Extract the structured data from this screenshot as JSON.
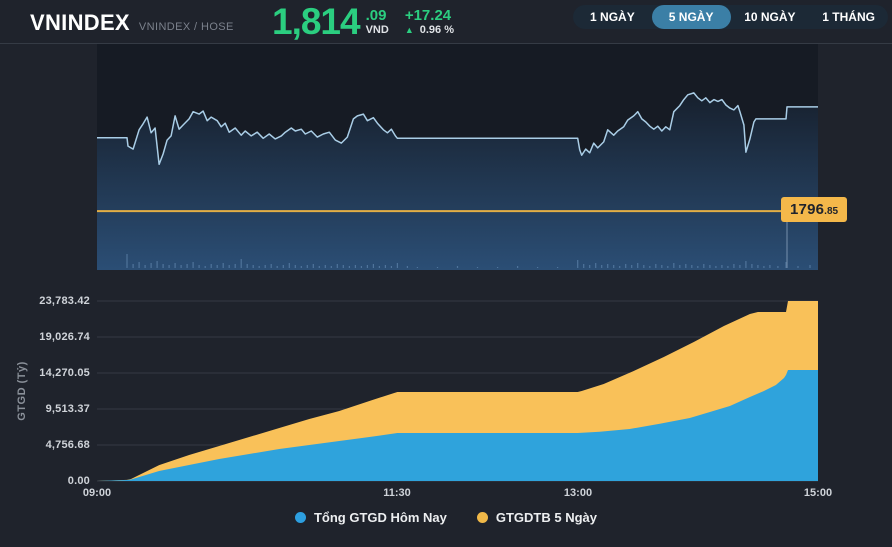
{
  "header": {
    "title": "VNINDEX",
    "subtitle": "VNINDEX / HOSE",
    "price_main": "1,814",
    "price_frac": ".09",
    "currency": "VND",
    "change": "+17.24",
    "up_arrow": "▲",
    "change_pct": "0.96 %"
  },
  "tabs": [
    {
      "label": "1 NGÀY",
      "active": false
    },
    {
      "label": "5 NGÀY",
      "active": true
    },
    {
      "label": "10 NGÀY",
      "active": false
    },
    {
      "label": "1 THÁNG",
      "active": false
    }
  ],
  "colors": {
    "up_green": "#2bce80",
    "price_line": "#a9cde6",
    "reference_yellow": "#e2ae45",
    "label_bg": "#f4b84a",
    "area_blue": "#2fa3dc",
    "area_yellow": "#f9c159",
    "legend_blue": "#2d9fe0",
    "legend_yellow": "#f0b848",
    "plot_bg": "#161b24",
    "page_bg": "#1f232c",
    "grid": "#343a44"
  },
  "chart_data": [
    {
      "type": "line",
      "name": "VNINDEX price (5-day view, intraday axis 09:00-15:00)",
      "x_unit": "minutes from 09:00",
      "x_range": [
        0,
        360
      ],
      "y_range": [
        1787.1,
        1824.5
      ],
      "grid": false,
      "reference_line": {
        "value": 1796.85,
        "label_main": "1796",
        "label_frac": ".85"
      },
      "cursor_minute": 344.5,
      "series": [
        {
          "name": "VNINDEX",
          "points": [
            [
              0,
              1809
            ],
            [
              15,
              1809
            ],
            [
              15.5,
              1807.6
            ],
            [
              18,
              1807.1
            ],
            [
              21,
              1810.3
            ],
            [
              23,
              1811.3
            ],
            [
              25,
              1812.4
            ],
            [
              27,
              1809.8
            ],
            [
              29,
              1810.6
            ],
            [
              31,
              1804.6
            ],
            [
              33,
              1806.3
            ],
            [
              35,
              1808.6
            ],
            [
              37,
              1809.3
            ],
            [
              39,
              1812.6
            ],
            [
              41,
              1810.4
            ],
            [
              43,
              1811.1
            ],
            [
              46,
              1812.1
            ],
            [
              48,
              1813.3
            ],
            [
              51,
              1812.9
            ],
            [
              53,
              1813.4
            ],
            [
              55,
              1811.8
            ],
            [
              57,
              1812.4
            ],
            [
              60,
              1811.8
            ],
            [
              62,
              1810.8
            ],
            [
              64,
              1811.4
            ],
            [
              66,
              1809.9
            ],
            [
              69,
              1810.6
            ],
            [
              72,
              1809.4
            ],
            [
              74,
              1810.1
            ],
            [
              77,
              1809.3
            ],
            [
              80,
              1809.9
            ],
            [
              83,
              1808.9
            ],
            [
              86,
              1809.6
            ],
            [
              89,
              1808.8
            ],
            [
              92,
              1809.3
            ],
            [
              94,
              1809.9
            ],
            [
              97,
              1810.6
            ],
            [
              99,
              1810.1
            ],
            [
              102,
              1810.4
            ],
            [
              104,
              1809.6
            ],
            [
              107,
              1810.1
            ],
            [
              110,
              1809.1
            ],
            [
              113,
              1809.6
            ],
            [
              116,
              1809.9
            ],
            [
              119,
              1808.6
            ],
            [
              122,
              1808.1
            ],
            [
              125,
              1809.1
            ],
            [
              128,
              1812.1
            ],
            [
              130,
              1812.6
            ],
            [
              133,
              1812.9
            ],
            [
              135,
              1811.8
            ],
            [
              138,
              1812.3
            ],
            [
              140,
              1811.4
            ],
            [
              143,
              1810.3
            ],
            [
              145,
              1809.8
            ],
            [
              147,
              1810.4
            ],
            [
              149,
              1809.3
            ],
            [
              150,
              1808.9
            ],
            [
              240,
              1808.9
            ],
            [
              241,
              1807
            ],
            [
              242,
              1806.1
            ],
            [
              244,
              1807.1
            ],
            [
              246,
              1806.5
            ],
            [
              248,
              1808.1
            ],
            [
              250,
              1807.3
            ],
            [
              253,
              1808.3
            ],
            [
              255,
              1810.3
            ],
            [
              258,
              1809.4
            ],
            [
              260,
              1810.1
            ],
            [
              263,
              1810.8
            ],
            [
              265,
              1811.9
            ],
            [
              268,
              1812.6
            ],
            [
              270,
              1813.3
            ],
            [
              272,
              1812.1
            ],
            [
              274,
              1811.6
            ],
            [
              276,
              1810.9
            ],
            [
              278,
              1810.4
            ],
            [
              280,
              1810.9
            ],
            [
              282,
              1810.1
            ],
            [
              284,
              1810.8
            ],
            [
              286,
              1810.3
            ],
            [
              288,
              1813.3
            ],
            [
              291,
              1814.3
            ],
            [
              293,
              1815.3
            ],
            [
              295,
              1816.1
            ],
            [
              298,
              1816.4
            ],
            [
              300,
              1815.6
            ],
            [
              302,
              1815.1
            ],
            [
              304,
              1815.6
            ],
            [
              306,
              1814.8
            ],
            [
              308,
              1815.3
            ],
            [
              310,
              1815
            ],
            [
              312,
              1815.3
            ],
            [
              314,
              1814.4
            ],
            [
              316,
              1813.9
            ],
            [
              318,
              1813.6
            ],
            [
              320,
              1814.3
            ],
            [
              321,
              1813.3
            ],
            [
              323,
              1811.1
            ],
            [
              324,
              1806.6
            ],
            [
              326,
              1808.8
            ],
            [
              328,
              1811.6
            ],
            [
              329,
              1812.1
            ],
            [
              344,
              1812.1
            ],
            [
              344.5,
              1814.09
            ],
            [
              360,
              1814.09
            ]
          ]
        }
      ],
      "volume_bars": [
        [
          15,
          14
        ],
        [
          18,
          4
        ],
        [
          21,
          6
        ],
        [
          24,
          3
        ],
        [
          27,
          5
        ],
        [
          30,
          7
        ],
        [
          33,
          4
        ],
        [
          36,
          3
        ],
        [
          39,
          5
        ],
        [
          42,
          3
        ],
        [
          45,
          4
        ],
        [
          48,
          6
        ],
        [
          51,
          3
        ],
        [
          54,
          2
        ],
        [
          57,
          4
        ],
        [
          60,
          3
        ],
        [
          63,
          5
        ],
        [
          66,
          3
        ],
        [
          69,
          4
        ],
        [
          72,
          9
        ],
        [
          75,
          4
        ],
        [
          78,
          3
        ],
        [
          81,
          2
        ],
        [
          84,
          3
        ],
        [
          87,
          4
        ],
        [
          90,
          2
        ],
        [
          93,
          3
        ],
        [
          96,
          5
        ],
        [
          99,
          3
        ],
        [
          102,
          2
        ],
        [
          105,
          3
        ],
        [
          108,
          4
        ],
        [
          111,
          2
        ],
        [
          114,
          3
        ],
        [
          117,
          2
        ],
        [
          120,
          4
        ],
        [
          123,
          3
        ],
        [
          126,
          2
        ],
        [
          129,
          3
        ],
        [
          132,
          2
        ],
        [
          135,
          3
        ],
        [
          138,
          4
        ],
        [
          141,
          2
        ],
        [
          144,
          3
        ],
        [
          147,
          2
        ],
        [
          150,
          5
        ],
        [
          155,
          2
        ],
        [
          160,
          1
        ],
        [
          170,
          1
        ],
        [
          180,
          2
        ],
        [
          190,
          1
        ],
        [
          200,
          1
        ],
        [
          210,
          2
        ],
        [
          220,
          1
        ],
        [
          230,
          1
        ],
        [
          240,
          8
        ],
        [
          243,
          4
        ],
        [
          246,
          3
        ],
        [
          249,
          5
        ],
        [
          252,
          3
        ],
        [
          255,
          4
        ],
        [
          258,
          3
        ],
        [
          261,
          2
        ],
        [
          264,
          4
        ],
        [
          267,
          3
        ],
        [
          270,
          5
        ],
        [
          273,
          3
        ],
        [
          276,
          2
        ],
        [
          279,
          4
        ],
        [
          282,
          3
        ],
        [
          285,
          2
        ],
        [
          288,
          5
        ],
        [
          291,
          3
        ],
        [
          294,
          4
        ],
        [
          297,
          3
        ],
        [
          300,
          2
        ],
        [
          303,
          4
        ],
        [
          306,
          3
        ],
        [
          309,
          2
        ],
        [
          312,
          3
        ],
        [
          315,
          2
        ],
        [
          318,
          4
        ],
        [
          321,
          3
        ],
        [
          324,
          7
        ],
        [
          327,
          4
        ],
        [
          330,
          3
        ],
        [
          333,
          2
        ],
        [
          336,
          3
        ],
        [
          340,
          2
        ],
        [
          344,
          6
        ],
        [
          350,
          2
        ],
        [
          356,
          3
        ]
      ]
    },
    {
      "type": "area",
      "name": "Cumulative trading value (GTGD)",
      "x_unit": "minutes from 09:00",
      "x_range": [
        0,
        360
      ],
      "ylim": [
        0,
        23783.42
      ],
      "grid": true,
      "ylabel": "GTGD (Tỷ)",
      "x_ticks": [
        {
          "pos": 0,
          "label": "09:00"
        },
        {
          "pos": 150,
          "label": "11:30"
        },
        {
          "pos": 240,
          "label": "13:00"
        },
        {
          "pos": 360,
          "label": "15:00"
        }
      ],
      "y_ticks": [
        {
          "value": 0,
          "label": "0.00"
        },
        {
          "value": 4756.68,
          "label": "4,756.68"
        },
        {
          "value": 9513.37,
          "label": "9,513.37"
        },
        {
          "value": 14270.05,
          "label": "14,270.05"
        },
        {
          "value": 19026.74,
          "label": "19,026.74"
        },
        {
          "value": 23783.42,
          "label": "23,783.42"
        }
      ],
      "series": [
        {
          "name": "GTGDTB 5 Ngày",
          "color": "#f9c159",
          "points": [
            [
              0,
              0
            ],
            [
              15,
              150
            ],
            [
              17,
              260
            ],
            [
              31,
              2100
            ],
            [
              46,
              3440
            ],
            [
              61,
              4620
            ],
            [
              76,
              5810
            ],
            [
              91,
              7000
            ],
            [
              106,
              8190
            ],
            [
              121,
              9250
            ],
            [
              136,
              10570
            ],
            [
              148,
              11600
            ],
            [
              150,
              11760
            ],
            [
              240,
              11760
            ],
            [
              242,
              11890
            ],
            [
              253,
              12820
            ],
            [
              268,
              14530
            ],
            [
              283,
              16380
            ],
            [
              298,
              18360
            ],
            [
              313,
              20480
            ],
            [
              326,
              22070
            ],
            [
              330,
              22330
            ],
            [
              344,
              22330
            ],
            [
              345,
              23783.42
            ],
            [
              360,
              23783.42
            ]
          ]
        },
        {
          "name": "Tổng GTGD Hôm Nay",
          "color": "#2fa3dc",
          "points": [
            [
              0,
              0
            ],
            [
              15,
              130
            ],
            [
              17,
              200
            ],
            [
              31,
              1320
            ],
            [
              46,
              2110
            ],
            [
              61,
              2910
            ],
            [
              76,
              3570
            ],
            [
              91,
              4230
            ],
            [
              106,
              4760
            ],
            [
              121,
              5290
            ],
            [
              136,
              5810
            ],
            [
              150,
              6340
            ],
            [
              240,
              6340
            ],
            [
              251,
              6520
            ],
            [
              266,
              6870
            ],
            [
              281,
              7560
            ],
            [
              296,
              8330
            ],
            [
              306,
              9120
            ],
            [
              316,
              9910
            ],
            [
              326,
              11100
            ],
            [
              333,
              11890
            ],
            [
              339,
              12690
            ],
            [
              343,
              13610
            ],
            [
              344,
              14000
            ],
            [
              345,
              14670
            ],
            [
              360,
              14670
            ]
          ]
        }
      ]
    }
  ],
  "legend": [
    {
      "label": "Tổng GTGD Hôm Nay",
      "color": "#2d9fe0"
    },
    {
      "label": "GTGDTB 5 Ngày",
      "color": "#f0b848"
    }
  ]
}
